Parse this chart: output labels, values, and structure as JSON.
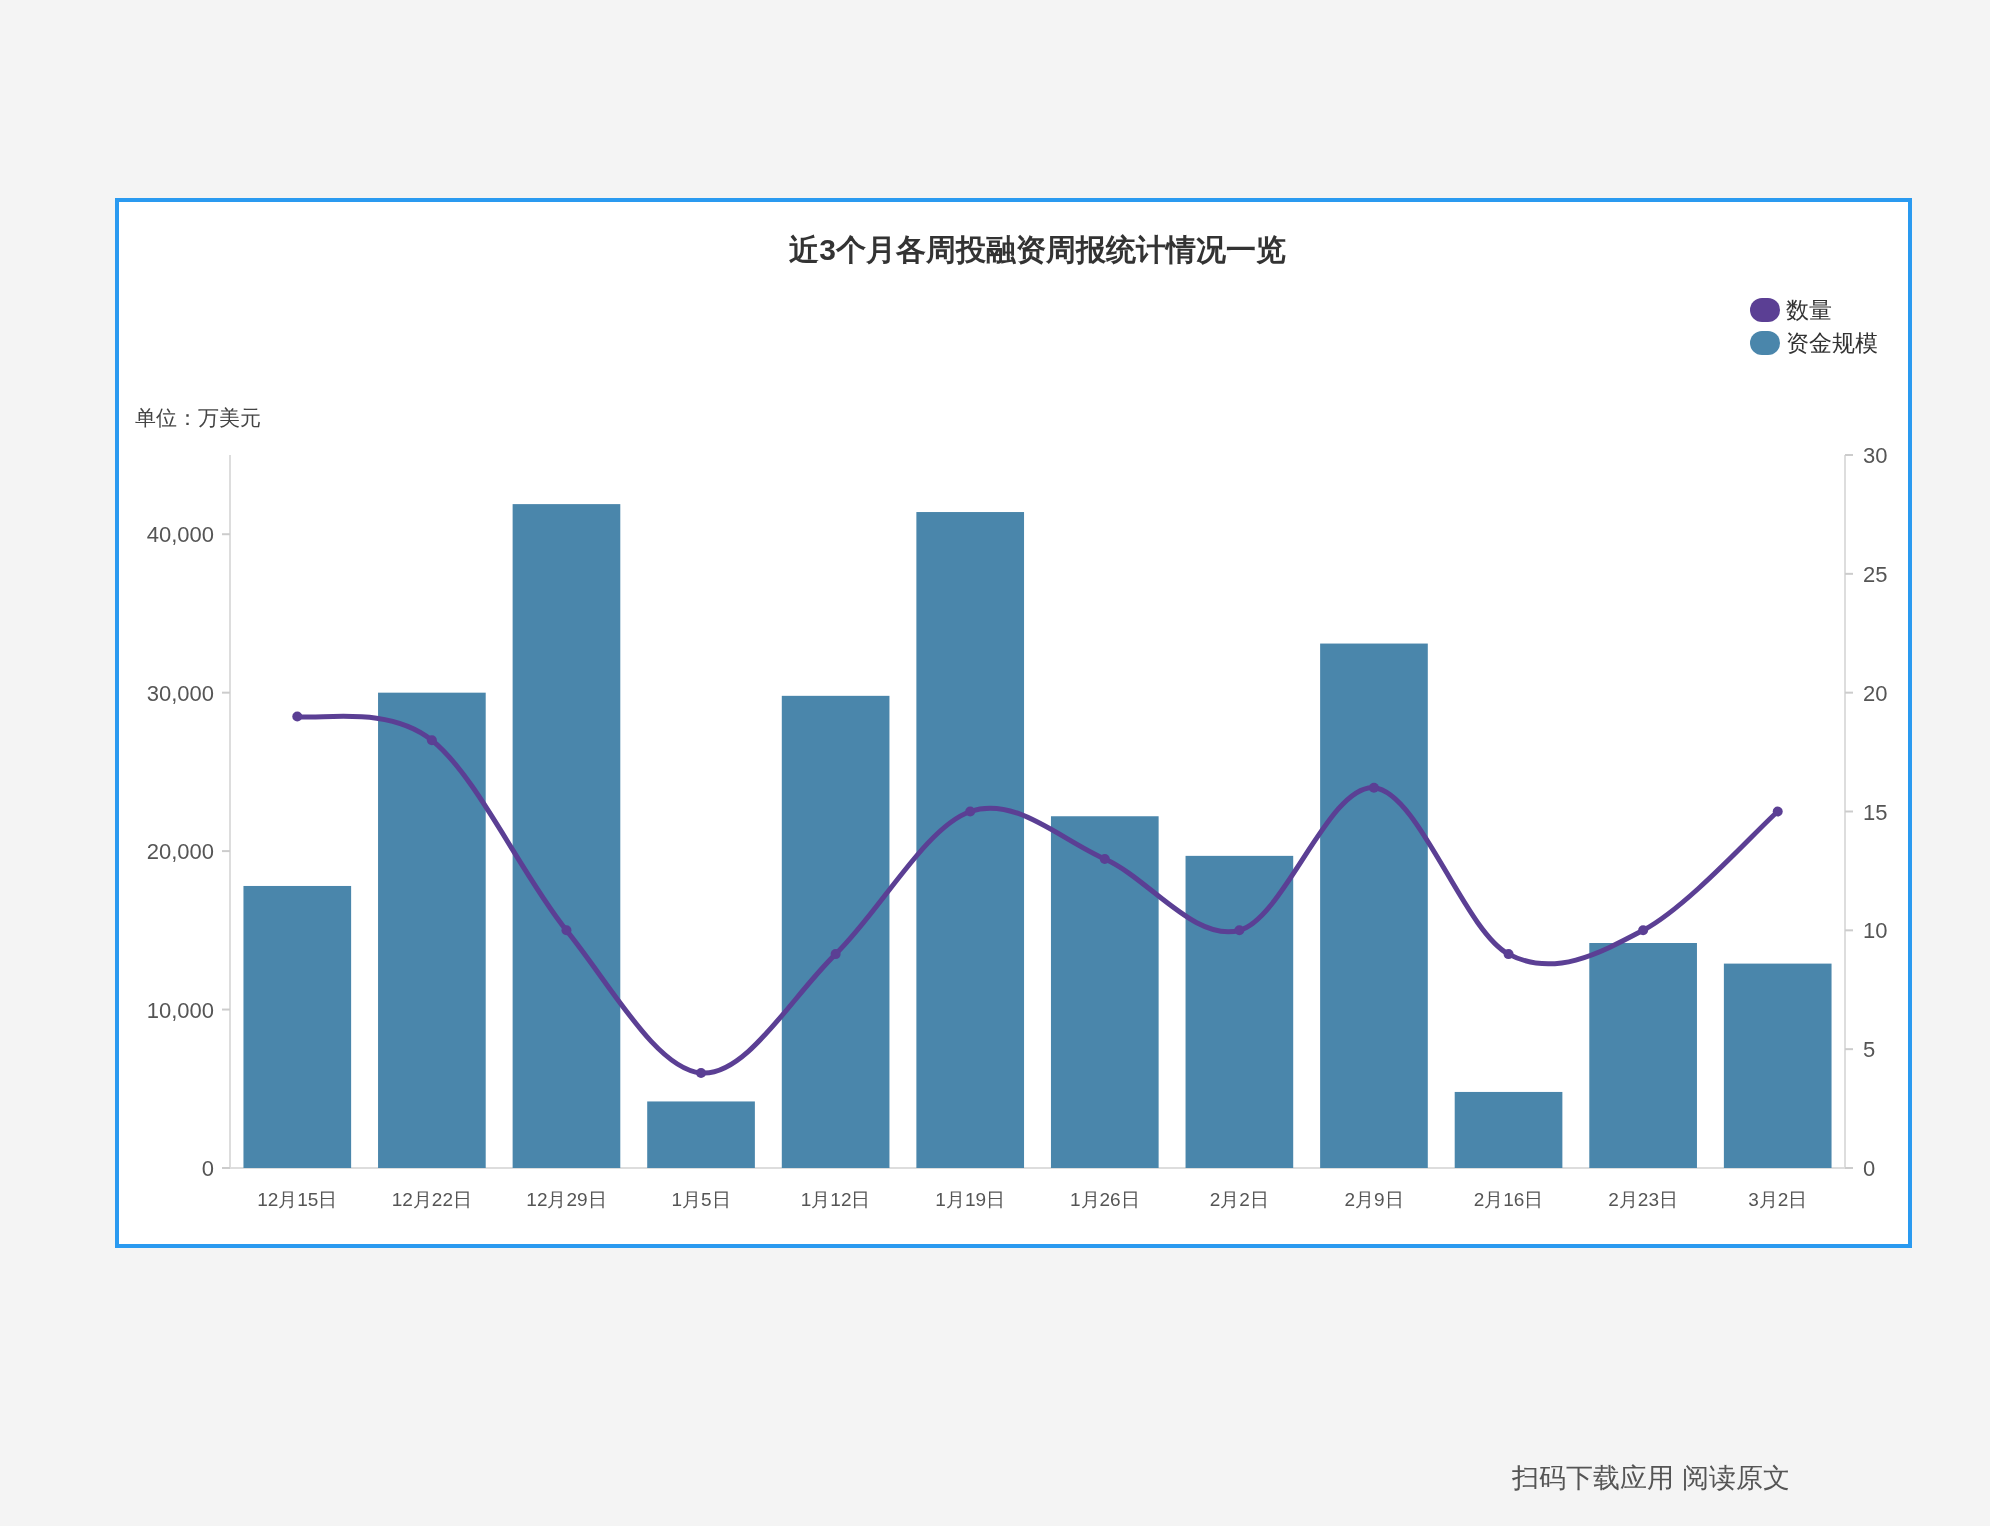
{
  "chart_data": {
    "type": "bar",
    "title": "近3个月各周投融资周报统计情况一览",
    "ylabel": "单位：万美元",
    "categories": [
      "12月15日",
      "12月22日",
      "12月29日",
      "1月5日",
      "1月12日",
      "1月19日",
      "1月26日",
      "2月2日",
      "2月9日",
      "2月16日",
      "2月23日",
      "3月2日"
    ],
    "series": [
      {
        "name": "数量",
        "type": "line",
        "axis": "y2",
        "color": "#5b3f94",
        "marker": "circle",
        "values": [
          19,
          18,
          10,
          4,
          9,
          15,
          13,
          10,
          16,
          9,
          10,
          15
        ]
      },
      {
        "name": "资金规模",
        "color": "#4a86ab",
        "values": [
          17800,
          30000,
          41900,
          4200,
          29800,
          41400,
          22200,
          19700,
          33100,
          4800,
          14200,
          12900
        ]
      }
    ],
    "ylim": [
      0,
      45000
    ],
    "yticks": [
      0,
      {
        "value": 10000,
        "label": "10,000"
      },
      {
        "value": 20000,
        "label": "20,000"
      },
      {
        "value": 30000,
        "label": "30,000"
      },
      {
        "value": 40000,
        "label": "40,000"
      }
    ],
    "y2lim": [
      0,
      30
    ],
    "y2ticks": [
      0,
      5,
      10,
      15,
      20,
      25,
      30
    ],
    "legend": "top right",
    "grid": false,
    "annotations": [
      "扫码下载应用 阅读原文"
    ]
  }
}
